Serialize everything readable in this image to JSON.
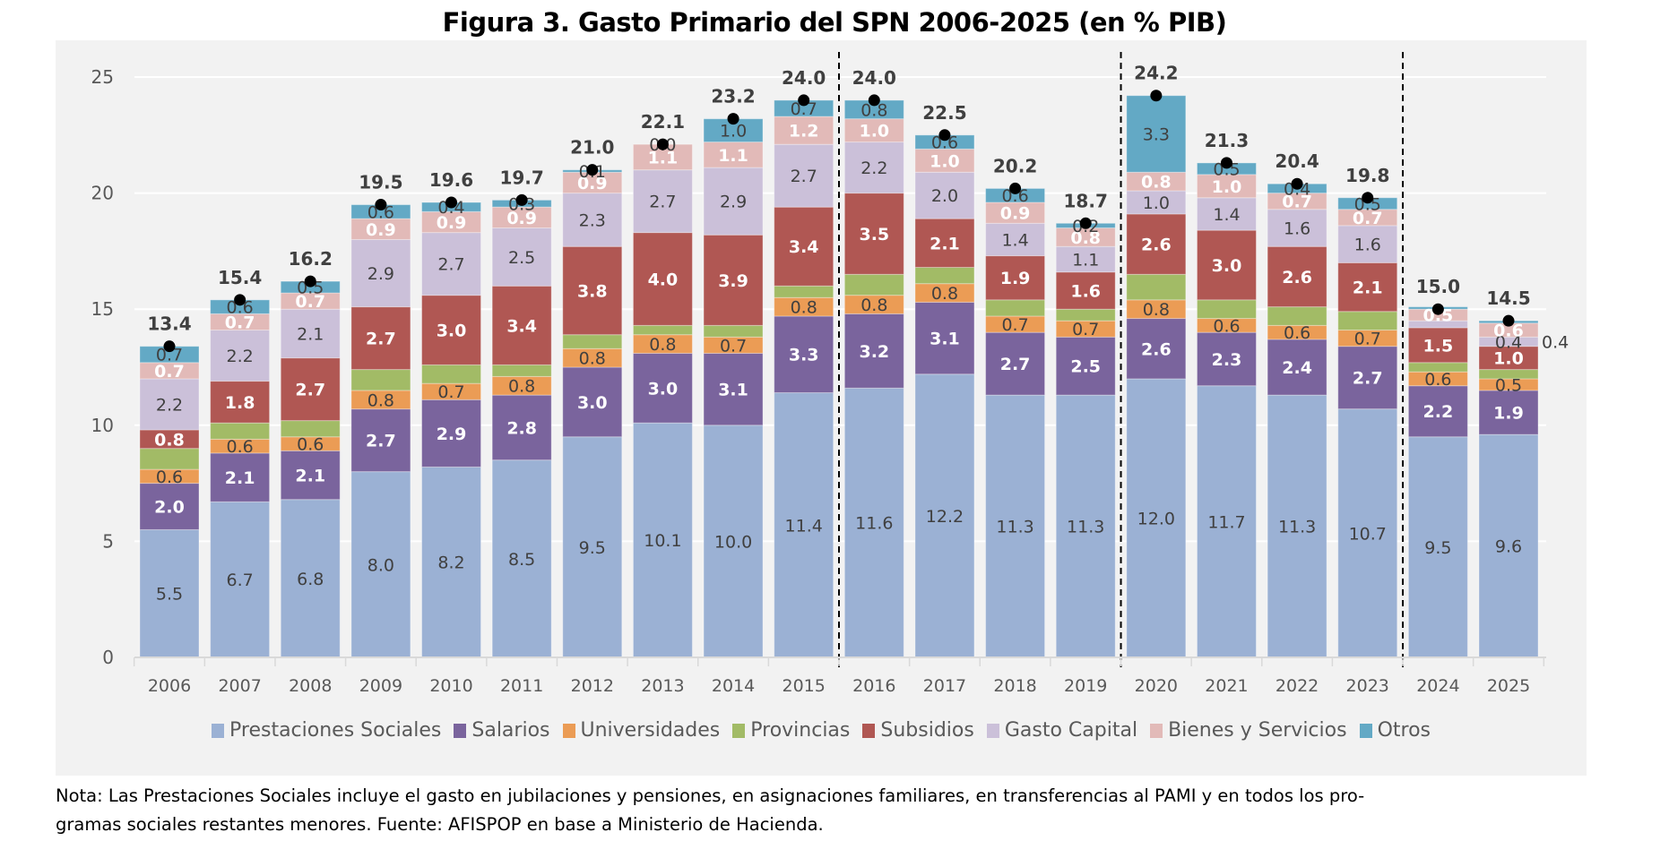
{
  "title": "Figura 3. Gasto Primario del SPN 2006-2025 (en % PIB)",
  "note": {
    "line1": "Nota: Las Prestaciones Sociales incluye el gasto en jubilaciones y pensiones, en asignaciones familiares, en transferencias al PAMI y en todos los pro-",
    "line2": "gramas sociales restantes menores. Fuente: AFISPOP en base a Ministerio de Hacienda."
  },
  "chart_data": {
    "type": "bar",
    "stacked": true,
    "title": "Figura 3. Gasto Primario del SPN 2006-2025 (en % PIB)",
    "xlabel": "",
    "ylabel": "",
    "ylim": [
      0,
      25
    ],
    "yticks": [
      0,
      5,
      10,
      15,
      20,
      25
    ],
    "grid": true,
    "legend_position": "bottom",
    "categories": [
      "2006",
      "2007",
      "2008",
      "2009",
      "2010",
      "2011",
      "2012",
      "2013",
      "2014",
      "2015",
      "2016",
      "2017",
      "2018",
      "2019",
      "2020",
      "2021",
      "2022",
      "2023",
      "2024",
      "2025"
    ],
    "separators_after": [
      "2015",
      "2019",
      "2023"
    ],
    "series": [
      {
        "name": "Prestaciones Sociales",
        "color": "#9bb1d4",
        "label_color": "#404040",
        "values": [
          5.5,
          6.7,
          6.8,
          8.0,
          8.2,
          8.5,
          9.5,
          10.1,
          10.0,
          11.4,
          11.6,
          12.2,
          11.3,
          11.3,
          12.0,
          11.7,
          11.3,
          10.7,
          9.5,
          9.6
        ],
        "labels": [
          "5.5",
          "6.7",
          "6.8",
          "8.0",
          "8.2",
          "8.5",
          "9.5",
          "10.1",
          "10.0",
          "11.4",
          "11.6",
          "12.2",
          "11.3",
          "11.3",
          "12.0",
          "11.7",
          "11.3",
          "10.7",
          "9.5",
          "9.6"
        ]
      },
      {
        "name": "Salarios",
        "color": "#7a649d",
        "label_color": "#ffffff",
        "values": [
          2.0,
          2.1,
          2.1,
          2.7,
          2.9,
          2.8,
          3.0,
          3.0,
          3.1,
          3.3,
          3.2,
          3.1,
          2.7,
          2.5,
          2.6,
          2.3,
          2.4,
          2.7,
          2.2,
          1.9
        ],
        "labels": [
          "2.0",
          "2.1",
          "2.1",
          "2.7",
          "2.9",
          "2.8",
          "3.0",
          "3.0",
          "3.1",
          "3.3",
          "3.2",
          "3.1",
          "2.7",
          "2.5",
          "2.6",
          "2.3",
          "2.4",
          "2.7",
          "2.2",
          "1.9"
        ]
      },
      {
        "name": "Universidades",
        "color": "#eb9c55",
        "label_color": "#404040",
        "values": [
          0.6,
          0.6,
          0.6,
          0.8,
          0.7,
          0.8,
          0.8,
          0.8,
          0.7,
          0.8,
          0.8,
          0.8,
          0.7,
          0.7,
          0.8,
          0.6,
          0.6,
          0.7,
          0.6,
          0.5
        ],
        "labels": [
          "0.6",
          "0.6",
          "0.6",
          "0.8",
          "0.7",
          "0.8",
          "0.8",
          "0.8",
          "0.7",
          "0.8",
          "0.8",
          "0.8",
          "0.7",
          "0.7",
          "0.8",
          "0.6",
          "0.6",
          "0.7",
          "0.6",
          "0.5"
        ]
      },
      {
        "name": "Provincias",
        "color": "#a2bb66",
        "label_color": "#404040",
        "values": [
          0.9,
          0.7,
          0.7,
          0.9,
          0.8,
          0.5,
          0.6,
          0.4,
          0.5,
          0.5,
          0.9,
          0.7,
          0.7,
          0.5,
          1.1,
          0.8,
          0.8,
          0.8,
          0.4,
          0.4
        ],
        "labels": [
          "",
          "",
          "",
          "",
          "",
          "",
          "",
          "",
          "",
          "",
          "",
          "",
          "",
          "",
          "",
          "",
          "",
          "",
          "",
          ""
        ]
      },
      {
        "name": "Subsidios",
        "color": "#b05753",
        "label_color": "#ffffff",
        "values": [
          0.8,
          1.8,
          2.7,
          2.7,
          3.0,
          3.4,
          3.8,
          4.0,
          3.9,
          3.4,
          3.5,
          2.1,
          1.9,
          1.6,
          2.6,
          3.0,
          2.6,
          2.1,
          1.5,
          1.0
        ],
        "labels": [
          "0.8",
          "1.8",
          "2.7",
          "2.7",
          "3.0",
          "3.4",
          "3.8",
          "4.0",
          "3.9",
          "3.4",
          "3.5",
          "2.1",
          "1.9",
          "1.6",
          "2.6",
          "3.0",
          "2.6",
          "2.1",
          "1.5",
          "1.0"
        ]
      },
      {
        "name": "Gasto Capital",
        "color": "#cbc0d9",
        "label_color": "#404040",
        "values": [
          2.2,
          2.2,
          2.1,
          2.9,
          2.7,
          2.5,
          2.3,
          2.7,
          2.9,
          2.7,
          2.2,
          2.0,
          1.4,
          1.1,
          1.0,
          1.4,
          1.6,
          1.6,
          0.3,
          0.4
        ],
        "labels": [
          "2.2",
          "2.2",
          "2.1",
          "2.9",
          "2.7",
          "2.5",
          "2.3",
          "2.7",
          "2.9",
          "2.7",
          "2.2",
          "2.0",
          "1.4",
          "1.1",
          "1.0",
          "1.4",
          "1.6",
          "1.6",
          "",
          "0.4"
        ]
      },
      {
        "name": "Bienes y Servicios",
        "color": "#e2bab8",
        "label_color": "#ffffff",
        "values": [
          0.7,
          0.7,
          0.7,
          0.9,
          0.9,
          0.9,
          0.9,
          1.1,
          1.1,
          1.2,
          1.0,
          1.0,
          0.9,
          0.8,
          0.8,
          1.0,
          0.7,
          0.7,
          0.5,
          0.6
        ],
        "labels": [
          "0.7",
          "0.7",
          "0.7",
          "0.9",
          "0.9",
          "0.9",
          "0.9",
          "1.1",
          "1.1",
          "1.2",
          "1.0",
          "1.0",
          "0.9",
          "0.8",
          "0.8",
          "1.0",
          "0.7",
          "0.7",
          "0.5",
          "0.6"
        ]
      },
      {
        "name": "Otros",
        "color": "#63a9c5",
        "label_color": "#404040",
        "values": [
          0.7,
          0.6,
          0.5,
          0.6,
          0.4,
          0.3,
          0.1,
          0.0,
          1.0,
          0.7,
          0.8,
          0.6,
          0.6,
          0.2,
          3.3,
          0.5,
          0.4,
          0.5,
          0.1,
          0.1
        ],
        "labels": [
          "0.7",
          "0.6",
          "0.5",
          "0.6",
          "0.4",
          "0.3",
          "0.1",
          "0.0",
          "1.0",
          "0.7",
          "0.8",
          "0.6",
          "0.6",
          "0.2",
          "3.3",
          "0.5",
          "0.4",
          "0.5",
          "",
          ""
        ]
      }
    ],
    "totals": [
      13.4,
      15.4,
      16.2,
      19.5,
      19.6,
      19.7,
      21.0,
      22.1,
      23.2,
      24.0,
      24.0,
      22.5,
      20.2,
      18.7,
      24.2,
      21.3,
      20.4,
      19.8,
      15.0,
      14.5
    ],
    "total_labels": [
      "13.4",
      "15.4",
      "16.2",
      "19.5",
      "19.6",
      "19.7",
      "21.0",
      "22.1",
      "23.2",
      "24.0",
      "24.0",
      "22.5",
      "20.2",
      "18.7",
      "24.2",
      "21.3",
      "20.4",
      "19.8",
      "15.0",
      "14.5"
    ],
    "outside_annotations": [
      {
        "category": "2025",
        "series": "Gasto Capital",
        "label": "0.4"
      }
    ]
  }
}
